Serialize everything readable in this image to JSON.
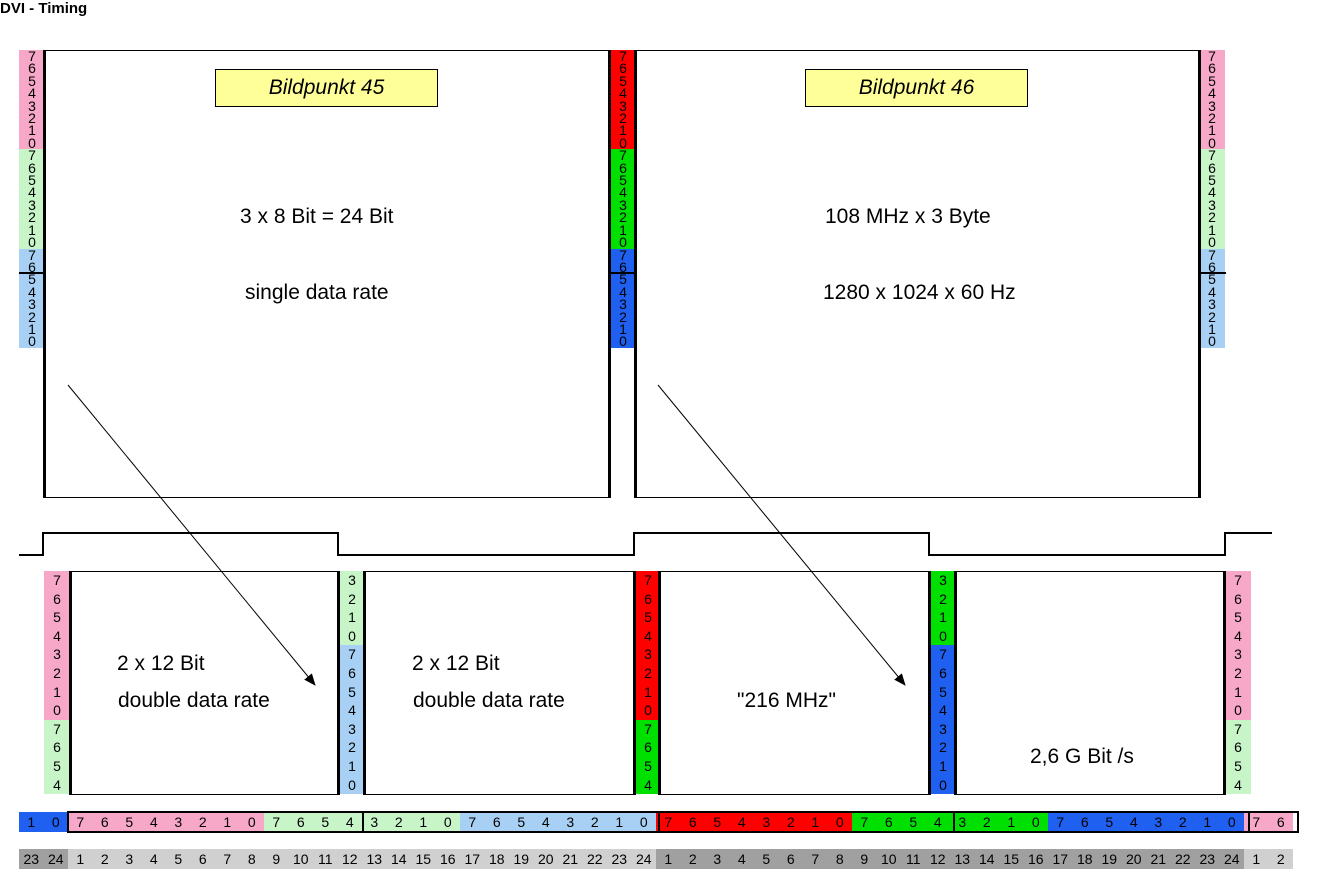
{
  "title": "DVI - Timing",
  "colors": {
    "pink": "#f7a8c8",
    "light_green": "#c8f5c8",
    "light_blue": "#a8d0f4",
    "red": "#ff0000",
    "green": "#00e000",
    "blue": "#2060f0",
    "label_yellow": "#ffff99",
    "gray_dark": "#a0a0a0",
    "gray_light": "#d0d0d0"
  },
  "top_panels": [
    {
      "label": "Bildpunkt 45",
      "line1": "3 x 8 Bit = 24 Bit",
      "line2": "single data rate"
    },
    {
      "label": "Bildpunkt 46",
      "line1": "108 MHz x 3 Byte",
      "line2": "1280 x 1024 x 60 Hz"
    }
  ],
  "bottom_panels": [
    {
      "line1": "2 x 12 Bit",
      "line2": "double data rate"
    },
    {
      "line1": "2 x 12 Bit",
      "line2": "double data rate"
    },
    {
      "line1": "\"216 MHz\"",
      "line2": ""
    },
    {
      "line1": "2,6 G Bit /s",
      "line2": ""
    }
  ],
  "bit_row_labels": [
    "1",
    "0",
    "7",
    "6",
    "5",
    "4",
    "3",
    "2",
    "1",
    "0",
    "7",
    "6",
    "5",
    "4",
    "3",
    "2",
    "1",
    "0",
    "7",
    "6",
    "5",
    "4",
    "3",
    "2",
    "1",
    "0",
    "7",
    "6",
    "5",
    "4",
    "3",
    "2",
    "1",
    "0",
    "7",
    "6",
    "5",
    "4",
    "3",
    "2",
    "1",
    "0",
    "7",
    "6",
    "5",
    "4",
    "3",
    "2",
    "1",
    "0",
    "7",
    "6"
  ],
  "index_row_labels": [
    "23",
    "24",
    "1",
    "2",
    "3",
    "4",
    "5",
    "6",
    "7",
    "8",
    "9",
    "10",
    "11",
    "12",
    "13",
    "14",
    "15",
    "16",
    "17",
    "18",
    "19",
    "20",
    "21",
    "22",
    "23",
    "24",
    "1",
    "2",
    "3",
    "4",
    "5",
    "6",
    "7",
    "8",
    "9",
    "10",
    "11",
    "12",
    "13",
    "14",
    "15",
    "16",
    "17",
    "18",
    "19",
    "20",
    "21",
    "22",
    "23",
    "24",
    "1",
    "2"
  ]
}
